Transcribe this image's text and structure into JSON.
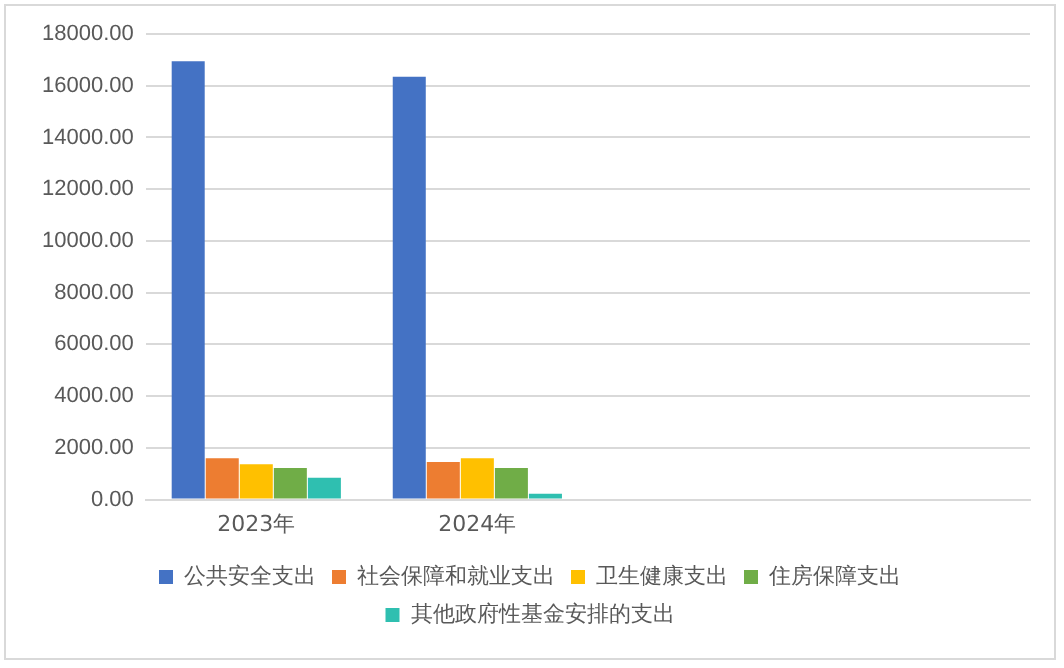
{
  "chart_data": {
    "type": "bar",
    "categories": [
      "2023年",
      "2024年",
      null,
      null
    ],
    "series": [
      {
        "name": "公共安全支出",
        "color": "#4472c4",
        "values": [
          16950,
          16350,
          null,
          null
        ]
      },
      {
        "name": "社会保障和就业支出",
        "color": "#ed7d31",
        "values": [
          1600,
          1450,
          null,
          null
        ]
      },
      {
        "name": "卫生健康支出",
        "color": "#ffc000",
        "values": [
          1370,
          1600,
          null,
          null
        ]
      },
      {
        "name": "住房保障支出",
        "color": "#70ad47",
        "values": [
          1220,
          1220,
          null,
          null
        ]
      },
      {
        "name": "其他政府性基金安排的支出",
        "color": "#2fbfb0",
        "values": [
          840,
          230,
          null,
          null
        ]
      }
    ],
    "ylim": [
      0,
      18000
    ],
    "yticks": [
      {
        "value": 0,
        "label": "0.00"
      },
      {
        "value": 2000,
        "label": "2000.00"
      },
      {
        "value": 4000,
        "label": "4000.00"
      },
      {
        "value": 6000,
        "label": "6000.00"
      },
      {
        "value": 8000,
        "label": "8000.00"
      },
      {
        "value": 10000,
        "label": "10000.00"
      },
      {
        "value": 12000,
        "label": "12000.00"
      },
      {
        "value": 14000,
        "label": "14000.00"
      },
      {
        "value": 16000,
        "label": "16000.00"
      },
      {
        "value": 18000,
        "label": "18000.00"
      }
    ],
    "grid": "y",
    "legend": "bottom"
  }
}
